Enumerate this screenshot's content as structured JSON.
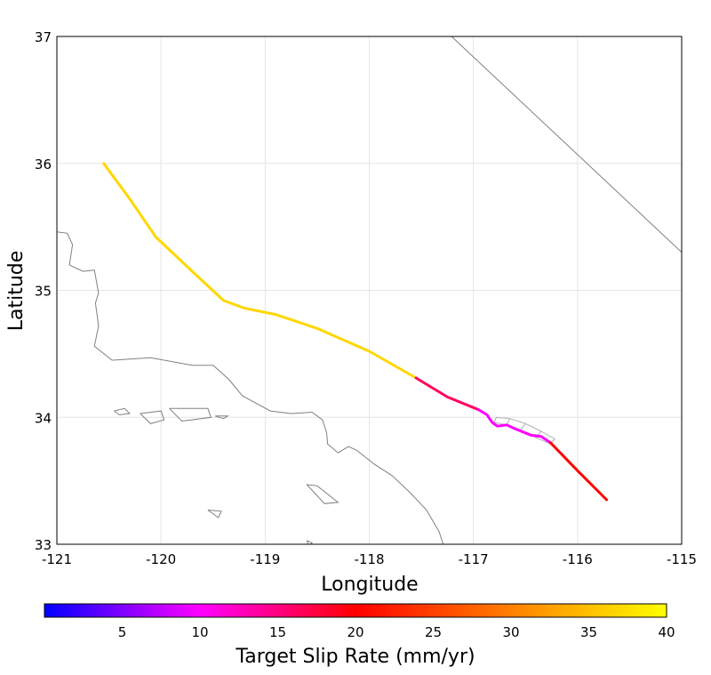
{
  "chart_data": {
    "type": "line",
    "title": "",
    "xlabel": "Longitude",
    "ylabel": "Latitude",
    "xlim": [
      -121,
      -115
    ],
    "ylim": [
      33,
      37
    ],
    "xticks": [
      "-121",
      "-120",
      "-119",
      "-118",
      "-117",
      "-116",
      "-115"
    ],
    "yticks": [
      "33",
      "34",
      "35",
      "36",
      "37"
    ],
    "grid": true,
    "fault_segments": [
      {
        "slip_rate": 37,
        "color": "#FFD700",
        "points": [
          [
            -120.55,
            36.0
          ],
          [
            -120.3,
            35.72
          ],
          [
            -120.05,
            35.42
          ],
          [
            -119.7,
            35.15
          ],
          [
            -119.4,
            34.92
          ],
          [
            -119.2,
            34.86
          ],
          [
            -118.9,
            34.81
          ],
          [
            -118.5,
            34.7
          ],
          [
            -118.0,
            34.52
          ],
          [
            -117.55,
            34.31
          ]
        ]
      },
      {
        "slip_rate": 18,
        "color": "#FF0060",
        "points": [
          [
            -117.55,
            34.31
          ],
          [
            -117.45,
            34.26
          ],
          [
            -117.25,
            34.16
          ],
          [
            -116.95,
            34.06
          ]
        ]
      },
      {
        "slip_rate": 10,
        "color": "#FF00FF",
        "points": [
          [
            -116.95,
            34.06
          ],
          [
            -116.87,
            34.02
          ],
          [
            -116.82,
            33.96
          ],
          [
            -116.77,
            33.93
          ],
          [
            -116.68,
            33.94
          ],
          [
            -116.6,
            33.91
          ],
          [
            -116.45,
            33.86
          ],
          [
            -116.35,
            33.85
          ],
          [
            -116.26,
            33.8
          ]
        ]
      },
      {
        "slip_rate": 21,
        "color": "#FF0000",
        "points": [
          [
            -116.26,
            33.8
          ],
          [
            -116.0,
            33.58
          ],
          [
            -115.72,
            33.35
          ]
        ]
      }
    ],
    "fault_zone_outline": [
      [
        -116.78,
        34.0
      ],
      [
        -116.65,
        33.99
      ],
      [
        -116.5,
        33.95
      ],
      [
        -116.35,
        33.89
      ],
      [
        -116.22,
        33.83
      ],
      [
        -116.26,
        33.79
      ],
      [
        -116.4,
        33.84
      ],
      [
        -116.55,
        33.9
      ],
      [
        -116.68,
        33.94
      ],
      [
        -116.8,
        33.96
      ]
    ],
    "state_border": [
      [
        -117.21,
        37.0
      ],
      [
        -115.0,
        35.3
      ]
    ],
    "coastline": [
      [
        [
          -121.0,
          35.46
        ],
        [
          -120.9,
          35.45
        ],
        [
          -120.85,
          35.36
        ],
        [
          -120.88,
          35.2
        ],
        [
          -120.75,
          35.15
        ],
        [
          -120.64,
          35.16
        ],
        [
          -120.6,
          34.98
        ],
        [
          -120.63,
          34.9
        ],
        [
          -120.6,
          34.72
        ],
        [
          -120.64,
          34.56
        ],
        [
          -120.47,
          34.45
        ],
        [
          -120.1,
          34.47
        ],
        [
          -119.7,
          34.41
        ],
        [
          -119.5,
          34.41
        ],
        [
          -119.35,
          34.3
        ],
        [
          -119.22,
          34.17
        ],
        [
          -118.95,
          34.05
        ],
        [
          -118.75,
          34.03
        ],
        [
          -118.55,
          34.04
        ],
        [
          -118.45,
          33.98
        ],
        [
          -118.41,
          33.88
        ],
        [
          -118.4,
          33.79
        ],
        [
          -118.3,
          33.72
        ],
        [
          -118.2,
          33.77
        ],
        [
          -118.12,
          33.74
        ],
        [
          -117.95,
          33.63
        ],
        [
          -117.78,
          33.54
        ],
        [
          -117.6,
          33.4
        ],
        [
          -117.45,
          33.27
        ],
        [
          -117.33,
          33.1
        ],
        [
          -117.29,
          33.0
        ]
      ]
    ],
    "islands": [
      [
        [
          -120.45,
          34.05
        ],
        [
          -120.35,
          34.07
        ],
        [
          -120.3,
          34.03
        ],
        [
          -120.4,
          34.02
        ],
        [
          -120.45,
          34.05
        ]
      ],
      [
        [
          -120.2,
          34.03
        ],
        [
          -120.0,
          34.05
        ],
        [
          -119.97,
          33.98
        ],
        [
          -120.1,
          33.95
        ],
        [
          -120.2,
          34.03
        ]
      ],
      [
        [
          -119.92,
          34.07
        ],
        [
          -119.55,
          34.07
        ],
        [
          -119.52,
          34.0
        ],
        [
          -119.8,
          33.97
        ],
        [
          -119.92,
          34.07
        ]
      ],
      [
        [
          -119.48,
          34.01
        ],
        [
          -119.36,
          34.01
        ],
        [
          -119.4,
          33.99
        ],
        [
          -119.48,
          34.01
        ]
      ],
      [
        [
          -118.6,
          33.47
        ],
        [
          -118.5,
          33.46
        ],
        [
          -118.3,
          33.33
        ],
        [
          -118.43,
          33.32
        ],
        [
          -118.6,
          33.47
        ]
      ],
      [
        [
          -119.55,
          33.27
        ],
        [
          -119.42,
          33.26
        ],
        [
          -119.45,
          33.21
        ],
        [
          -119.55,
          33.27
        ]
      ],
      [
        [
          -118.6,
          33.03
        ],
        [
          -118.55,
          33.01
        ],
        [
          -118.58,
          32.99
        ],
        [
          -118.6,
          33.03
        ]
      ]
    ]
  },
  "colorbar": {
    "label": "Target Slip Rate (mm/yr)",
    "min": 0,
    "max": 40,
    "ticks": [
      "5",
      "10",
      "15",
      "20",
      "25",
      "30",
      "35",
      "40"
    ],
    "tick_values": [
      5,
      10,
      15,
      20,
      25,
      30,
      35,
      40
    ],
    "colors": [
      "#0000FF",
      "#FF00FF",
      "#FF0000",
      "#FFFF00"
    ]
  }
}
